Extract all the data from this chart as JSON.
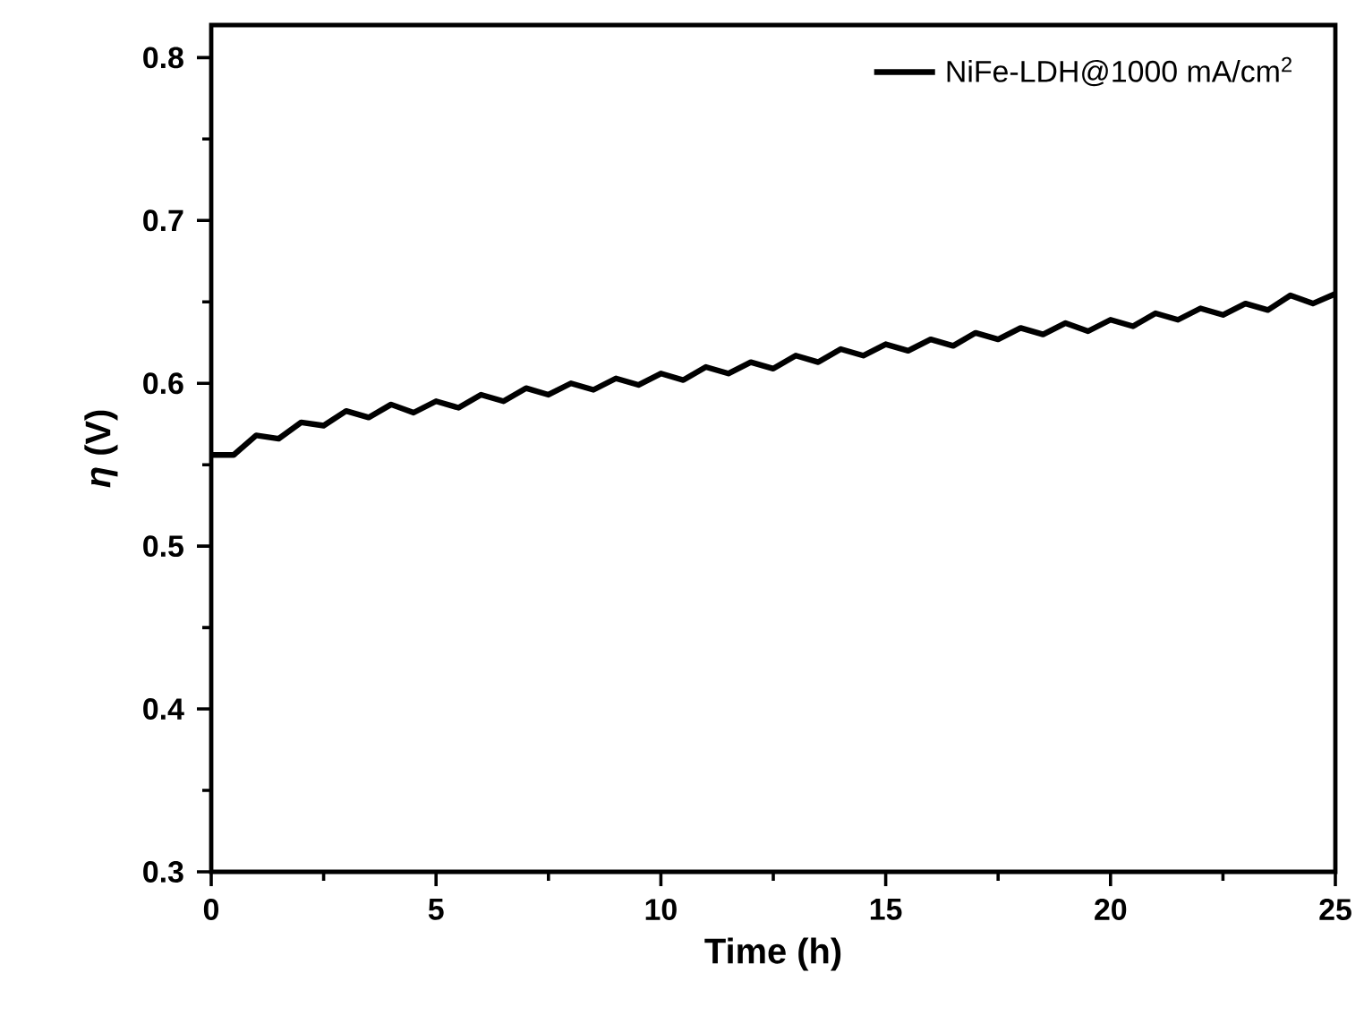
{
  "chart_data": {
    "type": "line",
    "xlabel": "Time (h)",
    "ylabel": "*η* **(V)**",
    "xlim": [
      0,
      25
    ],
    "ylim": [
      0.3,
      0.82
    ],
    "xticks": [
      0,
      5,
      10,
      15,
      20,
      25
    ],
    "yticks": [
      0.3,
      0.4,
      0.5,
      0.6,
      0.7,
      0.8
    ],
    "legend": "top right",
    "series": [
      {
        "name": "NiFe-LDH@1000 mA/cm$^{2}$",
        "color": "#000000",
        "x": [
          0,
          0.5,
          1,
          1.5,
          2,
          2.5,
          3,
          3.5,
          4,
          4.5,
          5,
          5.5,
          6,
          6.5,
          7,
          7.5,
          8,
          8.5,
          9,
          9.5,
          10,
          10.5,
          11,
          11.5,
          12,
          12.5,
          13,
          13.5,
          14,
          14.5,
          15,
          15.5,
          16,
          16.5,
          17,
          17.5,
          18,
          18.5,
          19,
          19.5,
          20,
          20.5,
          21,
          21.5,
          22,
          22.5,
          23,
          23.5,
          24,
          24.5,
          25
        ],
        "values": [
          0.556,
          0.556,
          0.568,
          0.566,
          0.576,
          0.574,
          0.583,
          0.579,
          0.587,
          0.582,
          0.589,
          0.585,
          0.593,
          0.589,
          0.597,
          0.593,
          0.6,
          0.596,
          0.603,
          0.599,
          0.606,
          0.602,
          0.61,
          0.606,
          0.613,
          0.609,
          0.617,
          0.613,
          0.621,
          0.617,
          0.624,
          0.62,
          0.627,
          0.623,
          0.631,
          0.627,
          0.634,
          0.63,
          0.637,
          0.632,
          0.639,
          0.635,
          0.643,
          0.639,
          0.646,
          0.642,
          0.649,
          0.645,
          0.654,
          0.649,
          0.655
        ]
      }
    ]
  }
}
